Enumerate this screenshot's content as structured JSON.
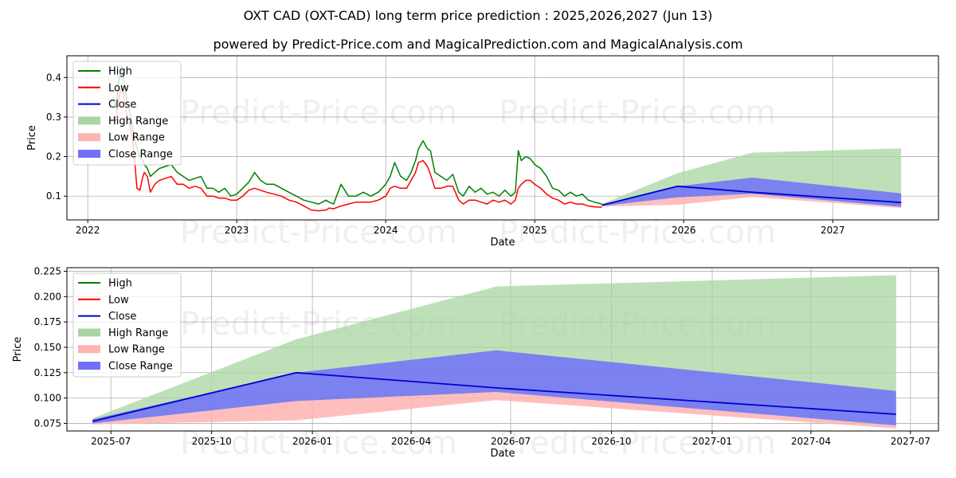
{
  "header": {
    "title": "OXT CAD (OXT-CAD) long term price prediction : 2025,2026,2027 (Jun 13)",
    "subtitle": "powered by Predict-Price.com and MagicalPrediction.com and MagicalAnalysis.com"
  },
  "watermark": "Predict-Price.com",
  "colors": {
    "high": "#008000",
    "low": "#ff0000",
    "close": "#0000cd",
    "high_range": "#a8d5a2",
    "low_range": "#ffb3b3",
    "close_range": "#7070f8",
    "grid": "#b0b0b0"
  },
  "legend": [
    "High",
    "Low",
    "Close",
    "High Range",
    "Low Range",
    "Close Range"
  ],
  "chart_data": [
    {
      "type": "line",
      "title": "",
      "xlabel": "Date",
      "ylabel": "Price",
      "xlim": [
        2021.86,
        2027.71
      ],
      "ylim": [
        0.04,
        0.455
      ],
      "xticks": [
        2022,
        2023,
        2024,
        2025,
        2026,
        2027
      ],
      "xtick_labels": [
        "2022",
        "2023",
        "2024",
        "2025",
        "2026",
        "2027"
      ],
      "yticks": [
        0.1,
        0.2,
        0.3,
        0.4
      ],
      "ytick_labels": [
        "0.1",
        "0.2",
        "0.3",
        "0.4"
      ],
      "legend_position": "top-left",
      "history": {
        "x": [
          2022.17,
          2022.19,
          2022.21,
          2022.23,
          2022.25,
          2022.27,
          2022.29,
          2022.31,
          2022.33,
          2022.35,
          2022.37,
          2022.38,
          2022.4,
          2022.42,
          2022.45,
          2022.48,
          2022.52,
          2022.56,
          2022.6,
          2022.64,
          2022.68,
          2022.72,
          2022.76,
          2022.8,
          2022.84,
          2022.88,
          2022.92,
          2022.96,
          2023.0,
          2023.04,
          2023.08,
          2023.12,
          2023.16,
          2023.2,
          2023.25,
          2023.3,
          2023.35,
          2023.4,
          2023.45,
          2023.5,
          2023.55,
          2023.6,
          2023.62,
          2023.65,
          2023.7,
          2023.75,
          2023.8,
          2023.85,
          2023.9,
          2023.95,
          2024.0,
          2024.03,
          2024.06,
          2024.1,
          2024.14,
          2024.17,
          2024.2,
          2024.22,
          2024.25,
          2024.28,
          2024.3,
          2024.33,
          2024.37,
          2024.41,
          2024.45,
          2024.49,
          2024.52,
          2024.56,
          2024.6,
          2024.64,
          2024.68,
          2024.72,
          2024.76,
          2024.8,
          2024.84,
          2024.87,
          2024.89,
          2024.91,
          2024.94,
          2024.97,
          2025.0,
          2025.04,
          2025.08,
          2025.12,
          2025.16,
          2025.2,
          2025.24,
          2025.28,
          2025.32,
          2025.36,
          2025.4,
          2025.45
        ],
        "high": [
          0.35,
          0.32,
          0.4,
          0.43,
          0.37,
          0.33,
          0.3,
          0.25,
          0.22,
          0.2,
          0.19,
          0.18,
          0.17,
          0.15,
          0.16,
          0.17,
          0.175,
          0.18,
          0.16,
          0.15,
          0.14,
          0.145,
          0.15,
          0.12,
          0.12,
          0.11,
          0.12,
          0.1,
          0.105,
          0.12,
          0.135,
          0.16,
          0.14,
          0.13,
          0.13,
          0.12,
          0.11,
          0.1,
          0.09,
          0.085,
          0.08,
          0.09,
          0.085,
          0.08,
          0.13,
          0.1,
          0.1,
          0.11,
          0.1,
          0.11,
          0.13,
          0.15,
          0.185,
          0.15,
          0.14,
          0.16,
          0.19,
          0.22,
          0.24,
          0.22,
          0.215,
          0.16,
          0.15,
          0.14,
          0.155,
          0.11,
          0.1,
          0.125,
          0.11,
          0.12,
          0.105,
          0.11,
          0.1,
          0.115,
          0.1,
          0.11,
          0.215,
          0.19,
          0.2,
          0.195,
          0.18,
          0.17,
          0.15,
          0.12,
          0.115,
          0.1,
          0.11,
          0.1,
          0.105,
          0.09,
          0.085,
          0.08
        ],
        "low": [
          0.3,
          0.29,
          0.35,
          0.38,
          0.33,
          0.29,
          0.27,
          0.21,
          0.12,
          0.115,
          0.15,
          0.16,
          0.15,
          0.11,
          0.13,
          0.14,
          0.145,
          0.15,
          0.13,
          0.13,
          0.12,
          0.125,
          0.12,
          0.1,
          0.1,
          0.095,
          0.095,
          0.09,
          0.09,
          0.1,
          0.115,
          0.12,
          0.115,
          0.11,
          0.105,
          0.1,
          0.09,
          0.085,
          0.075,
          0.065,
          0.063,
          0.065,
          0.07,
          0.068,
          0.075,
          0.08,
          0.085,
          0.085,
          0.085,
          0.09,
          0.1,
          0.12,
          0.125,
          0.12,
          0.12,
          0.14,
          0.16,
          0.185,
          0.19,
          0.175,
          0.155,
          0.12,
          0.12,
          0.125,
          0.125,
          0.09,
          0.08,
          0.09,
          0.09,
          0.085,
          0.08,
          0.09,
          0.085,
          0.09,
          0.08,
          0.09,
          0.12,
          0.13,
          0.14,
          0.14,
          0.13,
          0.12,
          0.105,
          0.095,
          0.09,
          0.08,
          0.085,
          0.08,
          0.08,
          0.075,
          0.073,
          0.072
        ]
      },
      "forecast": {
        "x": [
          2025.45,
          2025.96,
          2026.46,
          2027.46
        ],
        "close": [
          0.077,
          0.125,
          0.11,
          0.084
        ],
        "high_range_upper": [
          0.08,
          0.158,
          0.21,
          0.221
        ],
        "low_range_lower": [
          0.074,
          0.078,
          0.098,
          0.07
        ],
        "close_range_upper": [
          0.079,
          0.125,
          0.147,
          0.107
        ],
        "close_range_lower": [
          0.075,
          0.097,
          0.106,
          0.073
        ]
      }
    },
    {
      "type": "line",
      "title": "",
      "xlabel": "Date",
      "ylabel": "Price",
      "xlim": [
        2025.386,
        2027.566
      ],
      "ylim": [
        0.0675,
        0.2285
      ],
      "xticks": [
        2025.496,
        2025.748,
        2026.0,
        2026.247,
        2026.496,
        2026.748,
        2027.0,
        2027.247,
        2027.496
      ],
      "xtick_labels": [
        "2025-07",
        "2025-10",
        "2026-01",
        "2026-04",
        "2026-07",
        "2026-10",
        "2027-01",
        "2027-04",
        "2027-07"
      ],
      "yticks": [
        0.075,
        0.1,
        0.125,
        0.15,
        0.175,
        0.2,
        0.225
      ],
      "ytick_labels": [
        "0.075",
        "0.100",
        "0.125",
        "0.150",
        "0.175",
        "0.200",
        "0.225"
      ],
      "legend_position": "top-left",
      "forecast": {
        "x": [
          2025.45,
          2025.96,
          2026.46,
          2027.46
        ],
        "close": [
          0.077,
          0.125,
          0.11,
          0.084
        ],
        "high_range_upper": [
          0.08,
          0.158,
          0.21,
          0.221
        ],
        "low_range_lower": [
          0.074,
          0.078,
          0.098,
          0.07
        ],
        "close_range_upper": [
          0.079,
          0.125,
          0.147,
          0.107
        ],
        "close_range_lower": [
          0.075,
          0.097,
          0.106,
          0.073
        ]
      }
    }
  ]
}
